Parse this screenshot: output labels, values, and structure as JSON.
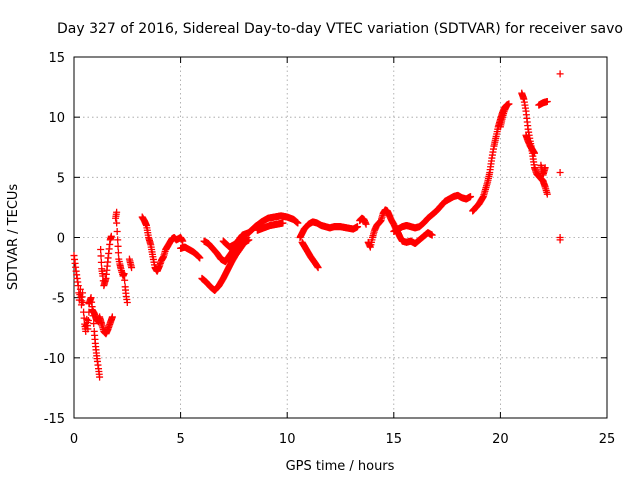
{
  "chart_data": {
    "type": "scatter",
    "title": "Day 327 of 2016, Sidereal Day-to-day VTEC variation (SDTVAR) for receiver savo",
    "xlabel": "GPS time / hours",
    "ylabel": "SDTVAR / TECUs",
    "xlim": [
      0,
      25
    ],
    "ylim": [
      -15,
      15
    ],
    "xticks": [
      0,
      5,
      10,
      15,
      20,
      25
    ],
    "yticks": [
      -15,
      -10,
      -5,
      0,
      5,
      10,
      15
    ],
    "grid": true,
    "marker": "+",
    "color": "#ff0000",
    "series": [
      {
        "name": "SDTVAR",
        "segments": [
          [
            [
              0.0,
              -1.5
            ],
            [
              0.1,
              -2.8
            ],
            [
              0.2,
              -4.0
            ],
            [
              0.25,
              -5.2
            ],
            [
              0.3,
              -4.3
            ],
            [
              0.35,
              -5.6
            ],
            [
              0.4,
              -4.6
            ],
            [
              0.45,
              -6.2
            ],
            [
              0.5,
              -7.2
            ],
            [
              0.55,
              -7.8
            ],
            [
              0.6,
              -6.8
            ],
            [
              0.65,
              -7.6
            ],
            [
              0.7,
              -6.2
            ]
          ],
          [
            [
              0.7,
              -5.5
            ],
            [
              0.8,
              -5.0
            ],
            [
              0.9,
              -6.5
            ],
            [
              0.95,
              -7.8
            ],
            [
              1.0,
              -8.8
            ],
            [
              1.05,
              -9.6
            ],
            [
              1.1,
              -10.3
            ],
            [
              1.15,
              -10.9
            ],
            [
              1.2,
              -11.6
            ]
          ],
          [
            [
              0.85,
              -6.0
            ],
            [
              0.95,
              -6.3
            ],
            [
              1.05,
              -6.8
            ],
            [
              1.15,
              -7.0
            ],
            [
              1.2,
              -6.6
            ],
            [
              1.3,
              -7.2
            ],
            [
              1.4,
              -7.8
            ],
            [
              1.5,
              -8.0
            ],
            [
              1.6,
              -7.6
            ],
            [
              1.7,
              -7.1
            ],
            [
              1.8,
              -6.6
            ]
          ],
          [
            [
              1.25,
              -1.0
            ],
            [
              1.3,
              -2.6
            ],
            [
              1.35,
              -3.2
            ],
            [
              1.4,
              -4.0
            ],
            [
              1.5,
              -3.4
            ],
            [
              1.6,
              -1.7
            ],
            [
              1.7,
              -0.2
            ],
            [
              1.75,
              0.1
            ]
          ],
          [
            [
              1.95,
              1.6
            ],
            [
              2.0,
              2.1
            ],
            [
              2.0,
              1.2
            ],
            [
              2.05,
              -0.2
            ],
            [
              2.1,
              -1.8
            ],
            [
              2.15,
              -2.2
            ],
            [
              2.2,
              -2.6
            ],
            [
              2.25,
              -2.9
            ],
            [
              2.3,
              -3.2
            ],
            [
              2.35,
              -3.0
            ],
            [
              2.4,
              -4.1
            ],
            [
              2.45,
              -4.9
            ],
            [
              2.5,
              -5.4
            ]
          ],
          [
            [
              2.6,
              -1.8
            ],
            [
              2.7,
              -2.5
            ]
          ],
          [
            [
              3.2,
              1.7
            ],
            [
              3.3,
              1.4
            ],
            [
              3.4,
              1.0
            ],
            [
              3.5,
              0.0
            ],
            [
              3.6,
              -0.6
            ],
            [
              3.7,
              -1.6
            ],
            [
              3.8,
              -2.5
            ],
            [
              3.9,
              -2.8
            ],
            [
              4.0,
              -2.4
            ],
            [
              4.1,
              -1.9
            ],
            [
              4.2,
              -1.6
            ],
            [
              4.3,
              -1.0
            ],
            [
              4.4,
              -0.7
            ],
            [
              4.5,
              -0.4
            ],
            [
              4.6,
              -0.1
            ],
            [
              4.7,
              0.0
            ],
            [
              4.8,
              -0.2
            ],
            [
              4.9,
              -0.1
            ],
            [
              5.0,
              0.0
            ],
            [
              5.1,
              -0.3
            ]
          ],
          [
            [
              5.0,
              -0.9
            ],
            [
              5.2,
              -0.8
            ],
            [
              5.4,
              -1.0
            ],
            [
              5.6,
              -1.2
            ],
            [
              5.8,
              -1.5
            ],
            [
              5.9,
              -1.7
            ]
          ],
          [
            [
              6.1,
              -0.3
            ],
            [
              6.3,
              -0.5
            ],
            [
              6.5,
              -0.9
            ],
            [
              6.7,
              -1.3
            ],
            [
              6.9,
              -1.8
            ],
            [
              7.1,
              -2.0
            ],
            [
              7.3,
              -1.5
            ],
            [
              7.5,
              -1.0
            ],
            [
              7.7,
              -0.6
            ],
            [
              7.9,
              -0.3
            ],
            [
              8.1,
              0.0
            ]
          ],
          [
            [
              6.0,
              -3.4
            ],
            [
              6.2,
              -3.7
            ],
            [
              6.4,
              -4.1
            ],
            [
              6.6,
              -4.4
            ],
            [
              6.8,
              -4.0
            ],
            [
              7.0,
              -3.4
            ],
            [
              7.2,
              -2.7
            ],
            [
              7.4,
              -2.0
            ],
            [
              7.6,
              -1.4
            ],
            [
              7.8,
              -0.9
            ],
            [
              8.0,
              -0.4
            ],
            [
              8.2,
              -0.2
            ]
          ],
          [
            [
              7.0,
              -0.3
            ],
            [
              7.3,
              -0.8
            ],
            [
              7.6,
              -0.5
            ],
            [
              7.9,
              0.2
            ],
            [
              8.2,
              0.4
            ],
            [
              8.5,
              0.9
            ],
            [
              8.8,
              1.3
            ],
            [
              9.1,
              1.6
            ],
            [
              9.4,
              1.7
            ],
            [
              9.7,
              1.8
            ],
            [
              10.0,
              1.7
            ],
            [
              10.3,
              1.5
            ],
            [
              10.5,
              1.2
            ]
          ],
          [
            [
              8.6,
              0.6
            ],
            [
              8.9,
              0.8
            ],
            [
              9.2,
              1.0
            ],
            [
              9.5,
              1.1
            ],
            [
              9.8,
              1.2
            ]
          ],
          [
            [
              10.7,
              -0.4
            ],
            [
              10.9,
              -1.0
            ],
            [
              11.1,
              -1.6
            ],
            [
              11.3,
              -2.1
            ],
            [
              11.45,
              -2.5
            ]
          ],
          [
            [
              10.6,
              0.0
            ],
            [
              10.8,
              0.7
            ],
            [
              11.0,
              1.1
            ],
            [
              11.2,
              1.3
            ],
            [
              11.4,
              1.2
            ],
            [
              11.6,
              1.0
            ],
            [
              11.8,
              0.9
            ],
            [
              12.0,
              0.8
            ],
            [
              12.2,
              0.9
            ],
            [
              12.5,
              0.9
            ],
            [
              12.8,
              0.8
            ],
            [
              13.1,
              0.7
            ],
            [
              13.3,
              0.9
            ]
          ],
          [
            [
              13.4,
              1.4
            ],
            [
              13.5,
              1.6
            ],
            [
              13.6,
              1.5
            ],
            [
              13.7,
              1.1
            ]
          ],
          [
            [
              13.8,
              -0.4
            ],
            [
              13.9,
              -0.8
            ],
            [
              14.0,
              0.0
            ],
            [
              14.1,
              0.6
            ],
            [
              14.2,
              1.0
            ],
            [
              14.3,
              1.2
            ],
            [
              14.4,
              1.4
            ],
            [
              14.5,
              2.0
            ],
            [
              14.6,
              2.3
            ],
            [
              14.7,
              2.2
            ],
            [
              14.8,
              1.8
            ],
            [
              14.9,
              1.4
            ],
            [
              15.0,
              1.1
            ],
            [
              15.1,
              0.7
            ],
            [
              15.2,
              0.4
            ],
            [
              15.3,
              0.0
            ],
            [
              15.4,
              -0.3
            ],
            [
              15.6,
              -0.4
            ],
            [
              15.8,
              -0.3
            ],
            [
              16.0,
              -0.5
            ],
            [
              16.2,
              -0.2
            ],
            [
              16.4,
              0.1
            ],
            [
              16.6,
              0.4
            ],
            [
              16.8,
              0.2
            ]
          ],
          [
            [
              15.0,
              0.5
            ],
            [
              15.2,
              0.7
            ],
            [
              15.4,
              0.9
            ],
            [
              15.6,
              1.0
            ],
            [
              15.8,
              0.9
            ],
            [
              16.0,
              0.8
            ],
            [
              16.2,
              0.9
            ],
            [
              16.4,
              1.2
            ],
            [
              16.6,
              1.6
            ],
            [
              16.8,
              1.9
            ],
            [
              17.0,
              2.2
            ],
            [
              17.2,
              2.6
            ],
            [
              17.4,
              3.0
            ],
            [
              17.6,
              3.2
            ],
            [
              17.8,
              3.4
            ],
            [
              18.0,
              3.5
            ],
            [
              18.2,
              3.3
            ],
            [
              18.4,
              3.2
            ],
            [
              18.6,
              3.4
            ]
          ],
          [
            [
              18.7,
              2.2
            ],
            [
              18.8,
              2.4
            ],
            [
              19.0,
              2.8
            ],
            [
              19.2,
              3.4
            ],
            [
              19.4,
              4.6
            ],
            [
              19.5,
              5.4
            ],
            [
              19.6,
              6.6
            ],
            [
              19.7,
              7.6
            ],
            [
              19.8,
              8.4
            ],
            [
              19.9,
              9.2
            ],
            [
              20.0,
              9.8
            ],
            [
              20.1,
              10.4
            ],
            [
              20.2,
              10.8
            ],
            [
              20.3,
              11.0
            ],
            [
              20.4,
              11.1
            ]
          ],
          [
            [
              20.0,
              9.2
            ],
            [
              20.1,
              10.0
            ],
            [
              20.2,
              10.6
            ],
            [
              20.3,
              11.0
            ]
          ],
          [
            [
              21.0,
              12.0
            ],
            [
              21.1,
              11.5
            ],
            [
              21.2,
              10.5
            ],
            [
              21.3,
              9.0
            ],
            [
              21.4,
              8.0
            ],
            [
              21.5,
              7.0
            ],
            [
              21.6,
              5.8
            ],
            [
              21.7,
              5.3
            ],
            [
              21.8,
              5.1
            ],
            [
              21.9,
              4.9
            ],
            [
              22.0,
              4.7
            ],
            [
              22.1,
              4.2
            ],
            [
              22.2,
              3.6
            ]
          ],
          [
            [
              21.2,
              8.5
            ],
            [
              21.3,
              8.0
            ],
            [
              21.4,
              7.6
            ],
            [
              21.5,
              7.3
            ],
            [
              21.6,
              7.0
            ]
          ],
          [
            [
              21.9,
              6.0
            ],
            [
              22.0,
              5.2
            ],
            [
              22.1,
              5.8
            ]
          ],
          [
            [
              21.8,
              11.0
            ],
            [
              21.9,
              11.1
            ],
            [
              22.0,
              11.2
            ],
            [
              22.2,
              11.3
            ]
          ],
          [
            [
              22.8,
              13.6
            ],
            [
              22.8,
              5.4
            ],
            [
              22.8,
              0.0
            ],
            [
              22.8,
              -0.2
            ]
          ]
        ]
      }
    ]
  }
}
